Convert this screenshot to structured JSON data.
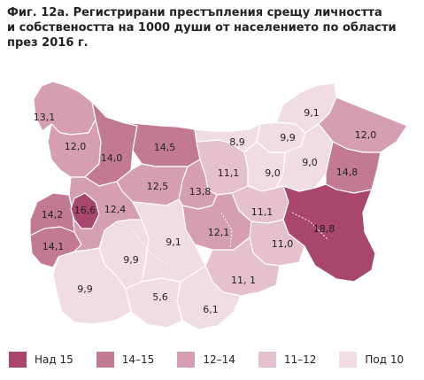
{
  "title": "Фиг. 12а. Регистрирани престъпления срещу личността\nи собствеността на 1000 души от населението по области\nпрез 2016 г.",
  "colors": {
    "over15": "#a8466e",
    "r14_15": "#c27a92",
    "r12_14": "#d59fb1",
    "r11_12": "#e4c1cb",
    "under10": "#f0dde2"
  },
  "legend": [
    {
      "label": "Над 15",
      "color": "#a8466e"
    },
    {
      "label": "14–15",
      "color": "#c27a92"
    },
    {
      "label": "12–14",
      "color": "#d59fb1"
    },
    {
      "label": "11–12",
      "color": "#e4c1cb"
    },
    {
      "label": "Под 10",
      "color": "#f0dde2"
    }
  ],
  "regions": [
    {
      "id": "vidin",
      "value": "13,1",
      "class": "r12_14"
    },
    {
      "id": "montana",
      "value": "12,0",
      "class": "r12_14"
    },
    {
      "id": "vratsa",
      "value": "14,0",
      "class": "r14_15"
    },
    {
      "id": "pleven",
      "value": "14,5",
      "class": "r14_15"
    },
    {
      "id": "lovech",
      "value": "12,5",
      "class": "r12_14"
    },
    {
      "id": "vtarnovo",
      "value": "11,1",
      "class": "r11_12"
    },
    {
      "id": "ruse",
      "value": "8,9",
      "class": "under10"
    },
    {
      "id": "gabrovo",
      "value": "13,8",
      "class": "r12_14"
    },
    {
      "id": "razgrad",
      "value": "9,9",
      "class": "under10"
    },
    {
      "id": "silistra",
      "value": "9,1",
      "class": "under10"
    },
    {
      "id": "dobrich",
      "value": "12,0",
      "class": "r12_14"
    },
    {
      "id": "targovishte",
      "value": "9,0",
      "class": "under10"
    },
    {
      "id": "shumen",
      "value": "9,0",
      "class": "under10"
    },
    {
      "id": "varna",
      "value": "14,8",
      "class": "r14_15"
    },
    {
      "id": "sliven",
      "value": "11,1",
      "class": "r11_12"
    },
    {
      "id": "burgas",
      "value": "18,8",
      "class": "over15"
    },
    {
      "id": "yambol",
      "value": "11,0",
      "class": "r11_12"
    },
    {
      "id": "szagora",
      "value": "12,1",
      "class": "r12_14"
    },
    {
      "id": "haskovo",
      "value": "11, 1",
      "class": "r11_12"
    },
    {
      "id": "kardzhali",
      "value": "6,1",
      "class": "under10"
    },
    {
      "id": "smolyan",
      "value": "5,6",
      "class": "under10"
    },
    {
      "id": "plovdiv",
      "value": "9,1",
      "class": "under10"
    },
    {
      "id": "pazardzhik",
      "value": "9,9",
      "class": "under10"
    },
    {
      "id": "blagoevgrad",
      "value": "9,9",
      "class": "under10"
    },
    {
      "id": "kyustendil",
      "value": "14,1",
      "class": "r14_15"
    },
    {
      "id": "pernik",
      "value": "14,2",
      "class": "r14_15"
    },
    {
      "id": "sofiacity",
      "value": "16,6",
      "class": "over15"
    },
    {
      "id": "sofiaprov",
      "value": "12,4",
      "class": "r12_14"
    }
  ]
}
